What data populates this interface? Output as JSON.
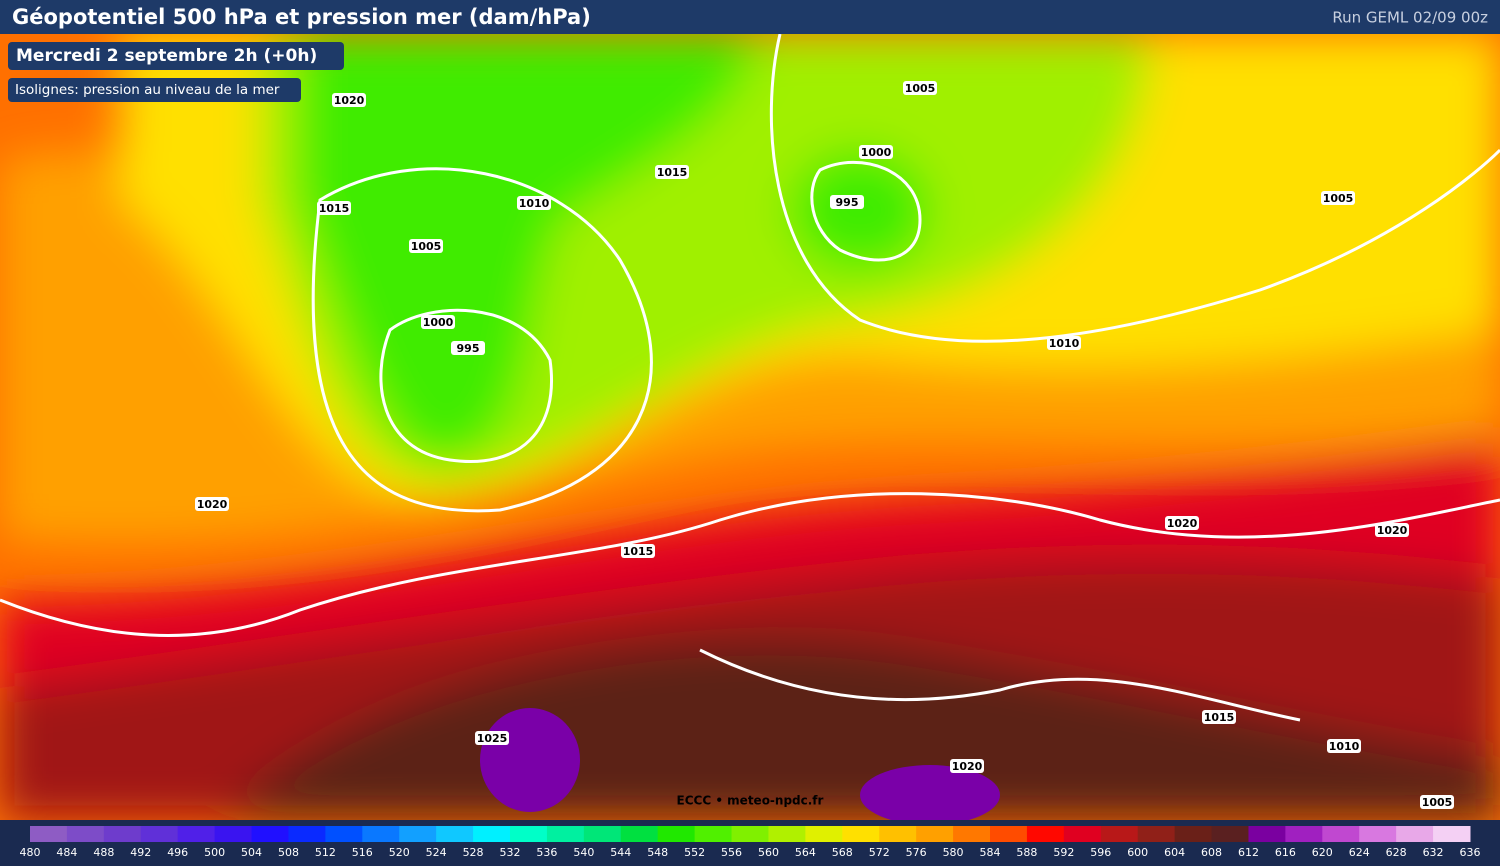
{
  "header": {
    "title": "Géopotentiel 500 hPa et pression mer (dam/hPa)",
    "run": "Run GEML 02/09 00z"
  },
  "info": {
    "date": "Mercredi 2 septembre 2h (+0h)",
    "isolines": "Isolignes: pression au niveau de la mer"
  },
  "isobars": {
    "labels": [
      "1020",
      "1015",
      "1010",
      "1005",
      "1000",
      "995",
      "1015",
      "1005",
      "1000",
      "995",
      "1005",
      "1010",
      "1020",
      "1015",
      "1020",
      "1020",
      "1025",
      "1015",
      "1010",
      "1020",
      "1005"
    ]
  },
  "credit": "ECCC • meteo-npdc.fr",
  "colorbar": {
    "labels": [
      480,
      484,
      488,
      492,
      496,
      500,
      504,
      508,
      512,
      516,
      520,
      524,
      528,
      532,
      536,
      540,
      544,
      548,
      552,
      556,
      560,
      564,
      568,
      572,
      576,
      580,
      584,
      588,
      592,
      596,
      600,
      604,
      608,
      612,
      616,
      620,
      624,
      628,
      632,
      636
    ],
    "colors": [
      "#8e5cc4",
      "#7d4cc8",
      "#6e3ccc",
      "#6030d8",
      "#5020e8",
      "#3a14f0",
      "#2010ff",
      "#0a2aff",
      "#0050ff",
      "#0a78ff",
      "#12a0ff",
      "#10c8ff",
      "#00f0ff",
      "#00ffc8",
      "#00f0a0",
      "#00e678",
      "#00e040",
      "#20e800",
      "#50f000",
      "#80f000",
      "#b0f000",
      "#e0f000",
      "#ffe000",
      "#ffc000",
      "#ffa000",
      "#ff7800",
      "#ff4c00",
      "#ff0800",
      "#e00020",
      "#b81818",
      "#902018",
      "#6a2018",
      "#5a2020",
      "#7a00a0",
      "#a020c0",
      "#c048d0",
      "#d878e0",
      "#e8a8e8",
      "#f4d0f4"
    ]
  }
}
